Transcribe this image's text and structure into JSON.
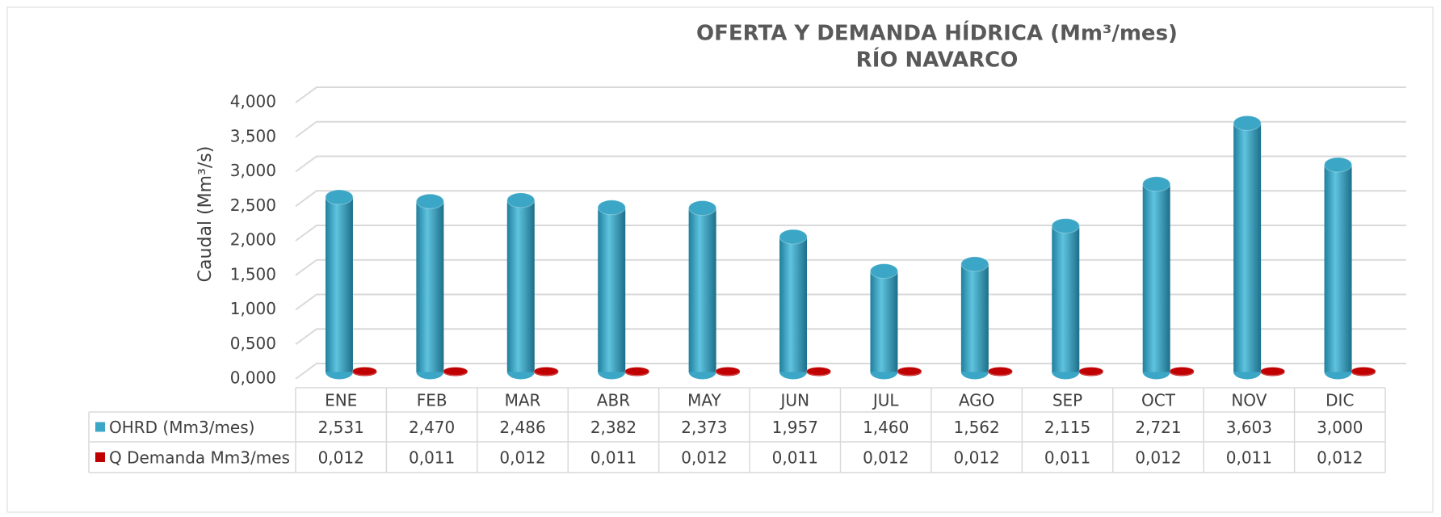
{
  "chart_data": {
    "type": "bar",
    "title": "OFERTA Y DEMANDA HÍDRICA (Mm³/mes)",
    "subtitle": "RÍO NAVARCO",
    "y_label": "Caudal (Mm³/s)",
    "categories": [
      "ENE",
      "FEB",
      "MAR",
      "ABR",
      "MAY",
      "JUN",
      "JUL",
      "AGO",
      "SEP",
      "OCT",
      "NOV",
      "DIC"
    ],
    "series": [
      {
        "name": "OHRD (Mm3/mes)",
        "color": "#3ba6c6",
        "values": [
          2.531,
          2.47,
          2.486,
          2.382,
          2.373,
          1.957,
          1.46,
          1.562,
          2.115,
          2.721,
          3.603,
          3.0
        ],
        "value_labels": [
          "2,531",
          "2,470",
          "2,486",
          "2,382",
          "2,373",
          "1,957",
          "1,460",
          "1,562",
          "2,115",
          "2,721",
          "3,603",
          "3,000"
        ]
      },
      {
        "name": "Q Demanda Mm3/mes",
        "color": "#c00000",
        "values": [
          0.012,
          0.011,
          0.012,
          0.011,
          0.012,
          0.011,
          0.012,
          0.012,
          0.011,
          0.012,
          0.011,
          0.012
        ],
        "value_labels": [
          "0,012",
          "0,011",
          "0,012",
          "0,011",
          "0,012",
          "0,011",
          "0,012",
          "0,012",
          "0,011",
          "0,012",
          "0,011",
          "0,012"
        ]
      }
    ],
    "ylim": [
      0,
      4
    ],
    "yticks": [
      {
        "value": 0,
        "label": "0,000"
      },
      {
        "value": 0.5,
        "label": "0,500"
      },
      {
        "value": 1,
        "label": "1,000"
      },
      {
        "value": 1.5,
        "label": "1,500"
      },
      {
        "value": 2,
        "label": "2,000"
      },
      {
        "value": 2.5,
        "label": "2,500"
      },
      {
        "value": 3,
        "label": "3,000"
      },
      {
        "value": 3.5,
        "label": "3,500"
      },
      {
        "value": 4,
        "label": "4,000"
      }
    ],
    "grid": true
  }
}
